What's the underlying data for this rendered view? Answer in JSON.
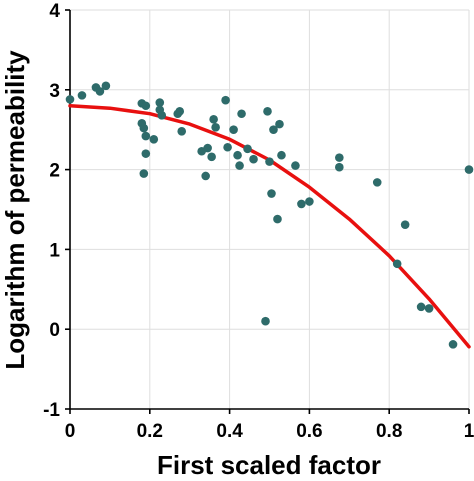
{
  "chart_data": {
    "type": "scatter",
    "xlabel": "First scaled factor",
    "ylabel": "Logarithm of permeability",
    "xlim": [
      0,
      1
    ],
    "ylim": [
      -1,
      4
    ],
    "xticks": [
      0,
      0.2,
      0.4,
      0.6,
      0.8,
      1
    ],
    "xtick_labels": [
      "0",
      "0.2",
      "0.4",
      "0.6",
      "0.8",
      "1"
    ],
    "yticks": [
      -1,
      0,
      1,
      2,
      3,
      4
    ],
    "ytick_labels": [
      "-1",
      "0",
      "1",
      "2",
      "3",
      "4"
    ],
    "grid": true,
    "colors": {
      "points": "#2e6b6a",
      "fit_line": "#e8100f",
      "grid": "#dedede",
      "axis": "#000000"
    },
    "series": [
      {
        "kind": "points",
        "x": [
          0.0,
          0.03,
          0.065,
          0.075,
          0.09,
          0.18,
          0.18,
          0.185,
          0.19,
          0.19,
          0.185,
          0.19,
          0.21,
          0.225,
          0.225,
          0.23,
          0.27,
          0.275,
          0.28,
          0.33,
          0.34,
          0.345,
          0.355,
          0.36,
          0.365,
          0.39,
          0.395,
          0.41,
          0.42,
          0.425,
          0.43,
          0.445,
          0.46,
          0.49,
          0.495,
          0.5,
          0.505,
          0.51,
          0.52,
          0.525,
          0.53,
          0.565,
          0.58,
          0.6,
          0.675,
          0.675,
          0.77,
          0.82,
          0.84,
          0.88,
          0.9,
          0.96,
          1.0
        ],
        "y": [
          2.88,
          2.93,
          3.03,
          2.98,
          3.05,
          2.83,
          2.58,
          2.52,
          2.42,
          2.2,
          1.95,
          2.8,
          2.38,
          2.84,
          2.75,
          2.68,
          2.7,
          2.73,
          2.48,
          2.23,
          1.92,
          2.27,
          2.16,
          2.63,
          2.53,
          2.87,
          2.28,
          2.5,
          2.18,
          2.05,
          2.7,
          2.26,
          2.13,
          0.1,
          2.73,
          2.1,
          1.7,
          2.5,
          1.38,
          2.57,
          2.18,
          2.05,
          1.57,
          1.6,
          2.03,
          2.15,
          1.84,
          0.82,
          1.31,
          0.28,
          0.26,
          -0.19,
          2.0
        ]
      },
      {
        "kind": "fit",
        "x": [
          0,
          0.1,
          0.2,
          0.3,
          0.4,
          0.5,
          0.6,
          0.7,
          0.8,
          0.9,
          1.0
        ],
        "y": [
          2.8,
          2.77,
          2.7,
          2.57,
          2.38,
          2.12,
          1.78,
          1.38,
          0.92,
          0.38,
          -0.22
        ]
      }
    ]
  }
}
